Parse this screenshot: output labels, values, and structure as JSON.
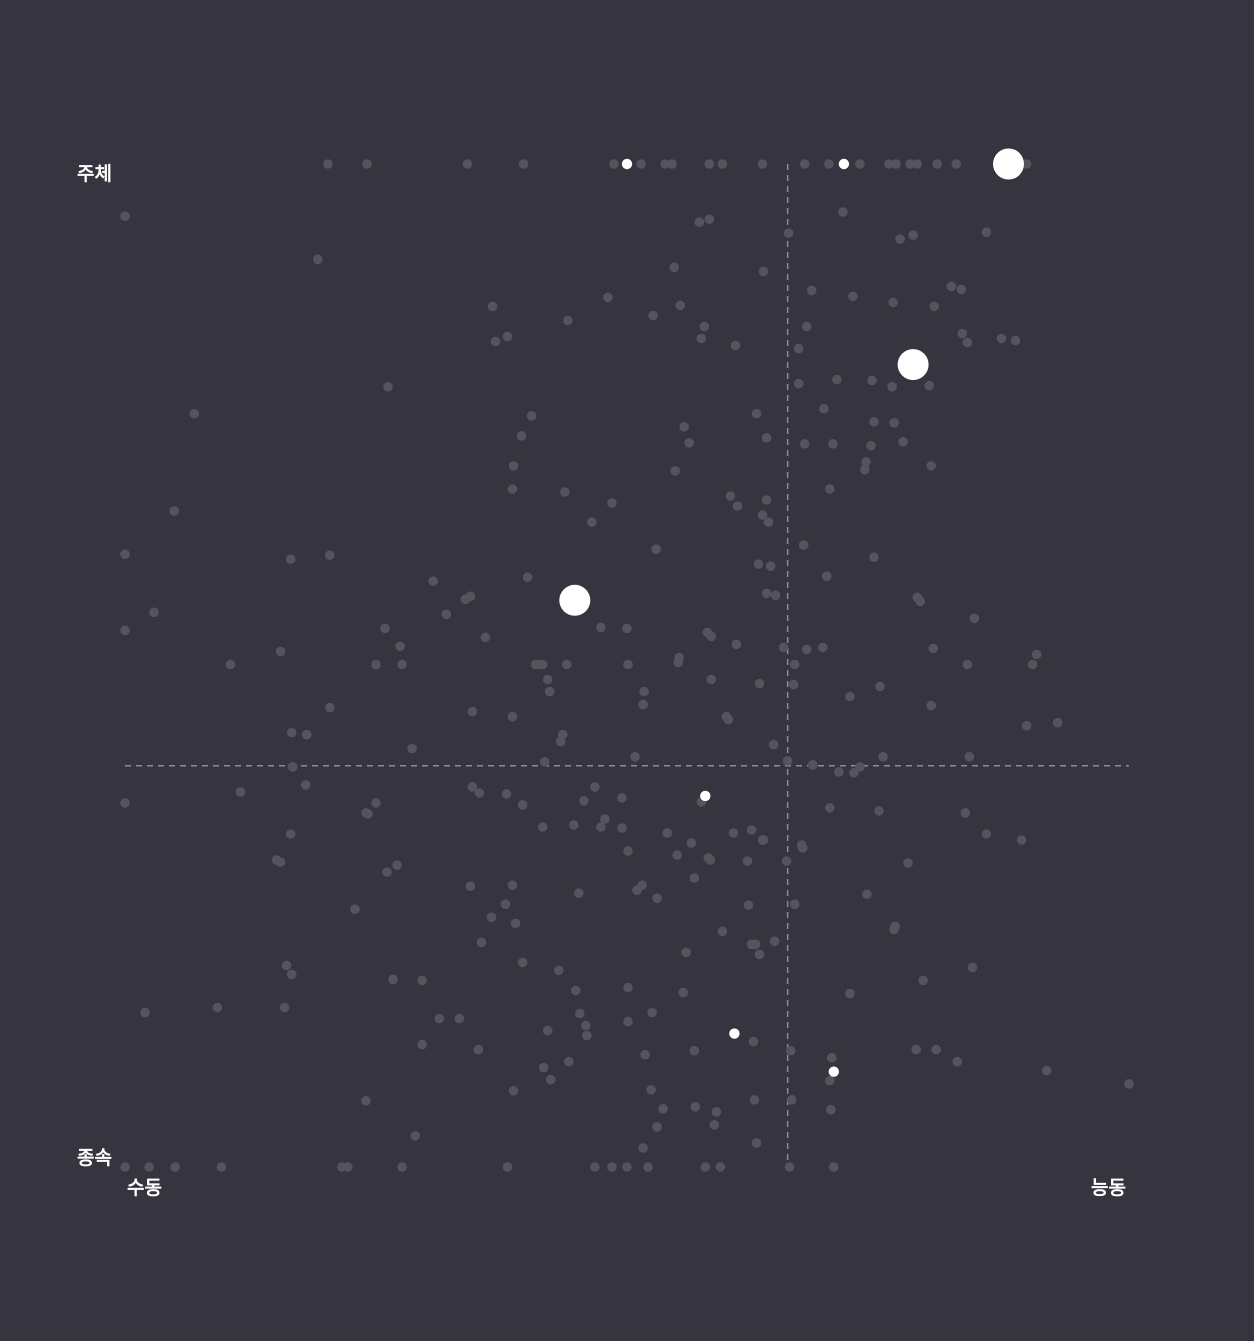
{
  "chart_data": {
    "type": "scatter",
    "x_axis": {
      "low_label": "수동",
      "high_label": "능동",
      "range": [
        0,
        100
      ],
      "gradient": [
        "#d8ad3c",
        "#3fc3b0"
      ]
    },
    "y_axis": {
      "low_label": "종속",
      "high_label": "주체",
      "range": [
        0,
        100
      ],
      "gradient": [
        "#6a63c8",
        "#e07a2a"
      ]
    },
    "reference_lines": {
      "x": 66,
      "y": 40
    },
    "colors": {
      "background": "#35343f",
      "dim_point": "#55545e",
      "highlight_point": "#ffffff",
      "reference_line": "#8c8b94"
    },
    "highlighted_points": [
      {
        "x": 88,
        "y": 100,
        "size": "large"
      },
      {
        "x": 78.5,
        "y": 80,
        "size": "large"
      },
      {
        "x": 44.8,
        "y": 56.5,
        "size": "large"
      },
      {
        "x": 50,
        "y": 100,
        "size": "small"
      },
      {
        "x": 71.6,
        "y": 100,
        "size": "small"
      },
      {
        "x": 57.8,
        "y": 37,
        "size": "small"
      },
      {
        "x": 60.7,
        "y": 13.3,
        "size": "small"
      },
      {
        "x": 70.6,
        "y": 9.5,
        "size": "small"
      }
    ],
    "background_points": [
      [
        20.2,
        100
      ],
      [
        24.1,
        100
      ],
      [
        34.1,
        100
      ],
      [
        39.7,
        100
      ],
      [
        48.7,
        100
      ],
      [
        51.4,
        100
      ],
      [
        53.8,
        100
      ],
      [
        54.5,
        100
      ],
      [
        58.2,
        100
      ],
      [
        59.5,
        100
      ],
      [
        63.5,
        100
      ],
      [
        67.7,
        100
      ],
      [
        70.1,
        100
      ],
      [
        73.2,
        100
      ],
      [
        76.1,
        100
      ],
      [
        76.8,
        100
      ],
      [
        78.2,
        100
      ],
      [
        78.9,
        100
      ],
      [
        80.9,
        100
      ],
      [
        82.8,
        100
      ],
      [
        89.8,
        100
      ],
      [
        0,
        0
      ],
      [
        2.4,
        0
      ],
      [
        5,
        0
      ],
      [
        9.6,
        0
      ],
      [
        21.6,
        0
      ],
      [
        22.2,
        0
      ],
      [
        27.6,
        0
      ],
      [
        38.1,
        0
      ],
      [
        46.8,
        0
      ],
      [
        48.5,
        0
      ],
      [
        50,
        0
      ],
      [
        52.1,
        0
      ],
      [
        57.8,
        0
      ],
      [
        59.3,
        0
      ],
      [
        66.2,
        0
      ],
      [
        70.6,
        0
      ],
      [
        0,
        94.8
      ],
      [
        0,
        61.1
      ],
      [
        0,
        53.5
      ],
      [
        0,
        36.3
      ],
      [
        57.2,
        94.2
      ],
      [
        58.2,
        94.5
      ],
      [
        66.1,
        93.1
      ],
      [
        71.5,
        95.2
      ],
      [
        77.2,
        92.5
      ],
      [
        78.5,
        92.9
      ],
      [
        85.8,
        93.2
      ],
      [
        19.2,
        90.5
      ],
      [
        54.7,
        89.7
      ],
      [
        63.6,
        89.3
      ],
      [
        68.4,
        87.4
      ],
      [
        72.5,
        86.8
      ],
      [
        76.5,
        86.2
      ],
      [
        82.3,
        87.8
      ],
      [
        83.3,
        87.5
      ],
      [
        36.6,
        85.8
      ],
      [
        44.1,
        84.4
      ],
      [
        48.1,
        86.7
      ],
      [
        52.6,
        84.9
      ],
      [
        55.3,
        85.9
      ],
      [
        57.7,
        83.8
      ],
      [
        67.9,
        83.8
      ],
      [
        80.6,
        85.8
      ],
      [
        83.4,
        83.1
      ],
      [
        88.7,
        82.4
      ],
      [
        36.9,
        82.3
      ],
      [
        38.1,
        82.8
      ],
      [
        57.4,
        82.6
      ],
      [
        60.8,
        81.9
      ],
      [
        67.1,
        81.6
      ],
      [
        83.9,
        82.2
      ],
      [
        87.3,
        82.6
      ],
      [
        26.2,
        77.8
      ],
      [
        67.1,
        78.1
      ],
      [
        70.9,
        78.5
      ],
      [
        74.4,
        78.4
      ],
      [
        76.4,
        77.8
      ],
      [
        80.1,
        77.9
      ],
      [
        6.9,
        75.1
      ],
      [
        40.5,
        74.9
      ],
      [
        55.7,
        73.8
      ],
      [
        62.9,
        75.1
      ],
      [
        69.6,
        75.6
      ],
      [
        74.6,
        74.3
      ],
      [
        76.6,
        74.2
      ],
      [
        77.5,
        72.3
      ],
      [
        39.5,
        72.9
      ],
      [
        63.9,
        72.7
      ],
      [
        67.7,
        72.1
      ],
      [
        70.5,
        72.1
      ],
      [
        73.8,
        70.3
      ],
      [
        74.3,
        71.9
      ],
      [
        80.3,
        69.9
      ],
      [
        54.8,
        69.4
      ],
      [
        56.2,
        72.2
      ],
      [
        60.3,
        66.9
      ],
      [
        70.2,
        67.6
      ],
      [
        73.7,
        69.5
      ],
      [
        38.6,
        67.6
      ],
      [
        43.8,
        67.3
      ],
      [
        48.5,
        66.2
      ],
      [
        61,
        65.9
      ],
      [
        63.5,
        65
      ],
      [
        63.9,
        66.5
      ],
      [
        64.1,
        64.3
      ],
      [
        46.5,
        64.3
      ],
      [
        4.9,
        65.4
      ],
      [
        38.7,
        69.9
      ],
      [
        52.9,
        61.6
      ],
      [
        67.6,
        62
      ],
      [
        74.6,
        60.8
      ],
      [
        16.5,
        60.6
      ],
      [
        20.4,
        61
      ],
      [
        40.1,
        58.8
      ],
      [
        63.1,
        60.1
      ],
      [
        64.3,
        59.9
      ],
      [
        69.9,
        58.9
      ],
      [
        30.7,
        58.4
      ],
      [
        33.9,
        56.6
      ],
      [
        63.9,
        57.2
      ],
      [
        64.8,
        57
      ],
      [
        78.9,
        56.8
      ],
      [
        79.2,
        56.4
      ],
      [
        84.6,
        54.7
      ],
      [
        2.9,
        55.3
      ],
      [
        32,
        55.1
      ],
      [
        34.4,
        56.9
      ],
      [
        25.9,
        53.7
      ],
      [
        27.4,
        51.9
      ],
      [
        35.9,
        52.8
      ],
      [
        47.4,
        53.8
      ],
      [
        50,
        53.7
      ],
      [
        58,
        53.3
      ],
      [
        58.4,
        52.9
      ],
      [
        60.9,
        52.1
      ],
      [
        65.6,
        51.8
      ],
      [
        67.9,
        51.6
      ],
      [
        69.5,
        51.8
      ],
      [
        80.5,
        51.7
      ],
      [
        90.8,
        51.1
      ],
      [
        15.5,
        51.4
      ],
      [
        27.6,
        50.1
      ],
      [
        41.6,
        50.1
      ],
      [
        44,
        50.1
      ],
      [
        50.1,
        50.1
      ],
      [
        55.1,
        50.3
      ],
      [
        66.7,
        50.1
      ],
      [
        83.9,
        50.1
      ],
      [
        90.4,
        50.1
      ],
      [
        10.5,
        50.1
      ],
      [
        25,
        50.1
      ],
      [
        40.9,
        50.1
      ],
      [
        41.3,
        50.1
      ],
      [
        42.1,
        48.6
      ],
      [
        42.3,
        47.4
      ],
      [
        51.7,
        47.4
      ],
      [
        55.2,
        50.8
      ],
      [
        58.4,
        48.6
      ],
      [
        63.2,
        48.2
      ],
      [
        66.6,
        48.1
      ],
      [
        72.2,
        46.9
      ],
      [
        75.2,
        47.9
      ],
      [
        20.4,
        45.8
      ],
      [
        34.6,
        45.4
      ],
      [
        38.6,
        44.9
      ],
      [
        51.6,
        46.1
      ],
      [
        59.9,
        44.9
      ],
      [
        80.3,
        46
      ],
      [
        92.9,
        44.3
      ],
      [
        16.6,
        43.3
      ],
      [
        18.1,
        43.1
      ],
      [
        28.6,
        41.7
      ],
      [
        43.4,
        42.4
      ],
      [
        43.6,
        43.1
      ],
      [
        60.1,
        44.6
      ],
      [
        64.6,
        42.1
      ],
      [
        89.8,
        44
      ],
      [
        84.1,
        40.9
      ],
      [
        16.7,
        39.9
      ],
      [
        18,
        38.1
      ],
      [
        41.8,
        40.4
      ],
      [
        50.8,
        40.9
      ],
      [
        66,
        40.5
      ],
      [
        68.5,
        40.1
      ],
      [
        71.1,
        39.4
      ],
      [
        73.2,
        39.9
      ],
      [
        75.5,
        40.9
      ],
      [
        72.6,
        39.3
      ],
      [
        16.5,
        33.2
      ],
      [
        11.5,
        37.4
      ],
      [
        24.2,
        35.2
      ],
      [
        25,
        36.3
      ],
      [
        34.6,
        37.9
      ],
      [
        35.3,
        37.3
      ],
      [
        38,
        37.2
      ],
      [
        39.6,
        36.1
      ],
      [
        41.6,
        33.9
      ],
      [
        46.8,
        37.9
      ],
      [
        45.7,
        36.5
      ],
      [
        49.5,
        36.8
      ],
      [
        57.4,
        36.4
      ],
      [
        62.4,
        33.6
      ],
      [
        70.2,
        35.8
      ],
      [
        75.1,
        35.5
      ],
      [
        83.7,
        35.3
      ],
      [
        85.8,
        33.2
      ],
      [
        89.3,
        32.6
      ],
      [
        24,
        35.3
      ],
      [
        44.7,
        34.1
      ],
      [
        47.4,
        33.9
      ],
      [
        49.5,
        33.8
      ],
      [
        47.8,
        34.7
      ],
      [
        50.1,
        31.5
      ],
      [
        54,
        33.3
      ],
      [
        56.4,
        32.3
      ],
      [
        60.6,
        33.3
      ],
      [
        63.5,
        32.6
      ],
      [
        67.4,
        32.1
      ],
      [
        67.5,
        31.8
      ],
      [
        55,
        31.1
      ],
      [
        58.3,
        30.6
      ],
      [
        58.1,
        30.8
      ],
      [
        63.6,
        32.6
      ],
      [
        62,
        30.5
      ],
      [
        65.9,
        30.5
      ],
      [
        78,
        30.3
      ],
      [
        15.5,
        30.4
      ],
      [
        15.1,
        30.6
      ],
      [
        26.1,
        29.4
      ],
      [
        27.1,
        30.1
      ],
      [
        34.4,
        28
      ],
      [
        38.6,
        28.1
      ],
      [
        45.2,
        27.3
      ],
      [
        51.5,
        28.1
      ],
      [
        51,
        27.6
      ],
      [
        53,
        26.8
      ],
      [
        56.7,
        28.8
      ],
      [
        62.1,
        26.1
      ],
      [
        66.7,
        26.2
      ],
      [
        73.9,
        27.2
      ],
      [
        76.6,
        23.7
      ],
      [
        22.9,
        25.7
      ],
      [
        37.9,
        26.2
      ],
      [
        36.5,
        24.9
      ],
      [
        38.9,
        24.3
      ],
      [
        35.5,
        22.4
      ],
      [
        55.9,
        21.4
      ],
      [
        59.5,
        23.5
      ],
      [
        62.4,
        22.2
      ],
      [
        62.8,
        22.2
      ],
      [
        63.2,
        21.2
      ],
      [
        64.7,
        22.5
      ],
      [
        76.7,
        24
      ],
      [
        16.1,
        20.1
      ],
      [
        16.6,
        19.2
      ],
      [
        39.6,
        20.4
      ],
      [
        43.2,
        19.6
      ],
      [
        26.7,
        18.7
      ],
      [
        29.6,
        18.6
      ],
      [
        44.9,
        17.6
      ],
      [
        50.1,
        17.9
      ],
      [
        55.6,
        17.4
      ],
      [
        72.2,
        17.3
      ],
      [
        79.5,
        18.6
      ],
      [
        84.4,
        19.9
      ],
      [
        2,
        15.4
      ],
      [
        9.2,
        15.9
      ],
      [
        15.9,
        15.9
      ],
      [
        31.3,
        14.8
      ],
      [
        33.3,
        14.8
      ],
      [
        45.3,
        15.3
      ],
      [
        50.1,
        14.5
      ],
      [
        52.5,
        15.4
      ],
      [
        45.9,
        14.1
      ],
      [
        42.1,
        13.6
      ],
      [
        46,
        13.1
      ],
      [
        29.6,
        12.2
      ],
      [
        35.2,
        11.7
      ],
      [
        51.8,
        11.2
      ],
      [
        56.7,
        11.6
      ],
      [
        62.6,
        12.5
      ],
      [
        66.3,
        11.6
      ],
      [
        78.8,
        11.7
      ],
      [
        80.8,
        11.7
      ],
      [
        82.9,
        10.5
      ],
      [
        70.4,
        10.9
      ],
      [
        44.2,
        10.5
      ],
      [
        41.7,
        9.9
      ],
      [
        42.4,
        8.7
      ],
      [
        91.8,
        9.6
      ],
      [
        100,
        8.3
      ],
      [
        70.2,
        8.6
      ],
      [
        24,
        6.6
      ],
      [
        38.7,
        7.6
      ],
      [
        52.4,
        7.7
      ],
      [
        53.6,
        5.8
      ],
      [
        56.8,
        6
      ],
      [
        58.9,
        5.5
      ],
      [
        62.7,
        6.7
      ],
      [
        66.4,
        6.7
      ],
      [
        70.3,
        5.7
      ],
      [
        58.7,
        4.2
      ],
      [
        53,
        4
      ],
      [
        62.9,
        2.4
      ],
      [
        51.6,
        1.9
      ],
      [
        28.9,
        3.1
      ]
    ]
  }
}
